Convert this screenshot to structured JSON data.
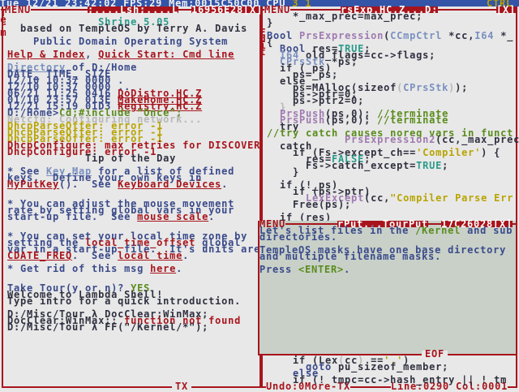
{
  "topbar": {
    "clock": "Tue 12/21 23:42:02",
    "fps": "FPS:29",
    "mem": "Mem:0015C50C00",
    "cpu": "CPU",
    "cpu_vals": "3 1",
    "ctrl": "CTRL"
  },
  "terminal": {
    "menu": "MENU",
    "title": ";....Lsh;....L",
    "id": "16956E28",
    "close": "[X]",
    "side_label": "Term",
    "footer": "TX",
    "lines": [
      [],
      [
        {
          "t": "              Shrine 5.05",
          "c": "c"
        }
      ],
      [
        {
          "t": "  based on TempleOS by Terry A. Davis",
          "c": "k"
        }
      ],
      [],
      [
        {
          "t": "    Public Domain Operating System",
          "c": "b"
        }
      ],
      [],
      [
        {
          "t": "Help & Index",
          "c": "r",
          "u": 1
        },
        {
          "t": ", ",
          "c": "b"
        },
        {
          "t": "Quick Start: Cmd line",
          "c": "r",
          "u": 1
        }
      ],
      [],
      [
        {
          "t": "Directory",
          "c": "l",
          "u": 1
        },
        {
          "t": " of D:/Home",
          "c": "b"
        }
      ],
      [
        {
          "t": "DATE_ TIME_ SIZE",
          "c": "b"
        }
      ],
      [
        {
          "t": "12/10 10:37 0000 .",
          "c": "b"
        }
      ],
      [
        {
          "t": "12/10 10:37 0000 ..",
          "c": "b"
        }
      ],
      [
        {
          "t": "06/21 11:25 0416 ",
          "c": "b"
        },
        {
          "t": "DoDistro.HC.Z",
          "c": "r",
          "u": 1
        }
      ],
      [
        {
          "t": "01/10 23:57 013E ",
          "c": "b"
        },
        {
          "t": "MakeHome.HC.Z",
          "c": "r",
          "u": 1
        }
      ],
      [
        {
          "t": "12/21 15:19 01D3 ",
          "c": "b"
        },
        {
          "t": "Registry.HC.Z",
          "c": "r",
          "u": 1
        }
      ],
      [
        {
          "t": "D:/Home>",
          "c": "b"
        },
        {
          "t": "Cd;#include \"Once\";",
          "c": "g"
        }
      ],
      [
        {
          "t": "Netcfg: Configuring network...",
          "c": "x"
        }
      ],
      [
        {
          "t": "DhcpParseOffer: error -1",
          "c": "y"
        }
      ],
      [
        {
          "t": "DhcpParseOffer: error -1",
          "c": "y"
        }
      ],
      [
        {
          "t": "DhcpParseOffer: error -1",
          "c": "y"
        }
      ],
      [
        {
          "t": "DhcpConfigure: max retries for DISCOVER",
          "c": "r"
        }
      ],
      [
        {
          "t": "DhcpConfigure: error -1",
          "c": "r"
        }
      ],
      [
        {
          "t": "            Tip of the Day",
          "c": "k"
        }
      ],
      [],
      [
        {
          "t": "* See ",
          "c": "b"
        },
        {
          "t": "Key Map",
          "c": "l",
          "u": 1
        },
        {
          "t": " for a list of defined",
          "c": "b"
        }
      ],
      [
        {
          "t": "keys.  Define your own keys in",
          "c": "b"
        }
      ],
      [
        {
          "t": "MyPutKey",
          "c": "r",
          "u": 1
        },
        {
          "t": "().  See ",
          "c": "b"
        },
        {
          "t": "Keyboard Devices",
          "c": "r",
          "u": 1
        },
        {
          "t": ".",
          "c": "b"
        }
      ],
      [],
      [],
      [
        {
          "t": "* You can adjust the mouse movement",
          "c": "b"
        }
      ],
      [
        {
          "t": "rate by setting global vars in your",
          "c": "b"
        }
      ],
      [
        {
          "t": "start-up file.  See ",
          "c": "b"
        },
        {
          "t": "mouse scale",
          "c": "r",
          "u": 1
        },
        {
          "t": ".",
          "c": "b"
        }
      ],
      [],
      [],
      [
        {
          "t": "* You can set your local time zone by",
          "c": "b"
        }
      ],
      [
        {
          "t": "setting the ",
          "c": "b"
        },
        {
          "t": "local_time_offset",
          "c": "r"
        },
        {
          "t": " global",
          "c": "b"
        }
      ],
      [
        {
          "t": "var in a start-up file.  It's units are",
          "c": "b"
        }
      ],
      [
        {
          "t": "CDATE_FREQ",
          "c": "r",
          "u": 1
        },
        {
          "t": ".  See ",
          "c": "b"
        },
        {
          "t": "local time",
          "c": "r",
          "u": 1
        },
        {
          "t": ".",
          "c": "b"
        }
      ],
      [],
      [
        {
          "t": "* Get rid of this msg ",
          "c": "b"
        },
        {
          "t": "here",
          "c": "r",
          "u": 1
        },
        {
          "t": ".",
          "c": "b"
        }
      ],
      [],
      [],
      [
        {
          "t": "Take Tour(y or n)? ",
          "c": "b"
        },
        {
          "t": "YES",
          "c": "g"
        }
      ],
      [
        {
          "t": "Welcome to Lambda Shell!",
          "c": "k"
        }
      ],
      [
        {
          "t": "Type intro for a quick introduction.",
          "c": "k"
        }
      ],
      [],
      [
        {
          "t": "D:/Misc/Tour λ DocClear;WinMax;",
          "c": "k"
        }
      ],
      [
        {
          "t": "DocClear;WinMax;: ",
          "c": "k"
        },
        {
          "t": "function not found",
          "c": "r"
        }
      ],
      [
        {
          "t": "D:/Misc/Tour λ FF(\"/Kernel/*\");",
          "c": "k"
        }
      ]
    ]
  },
  "editor": {
    "menu": "MENU",
    "title": "rsExp.HC.Z...D:",
    "close": "[X]",
    "side_label": "Edit",
    "status_left": "Undo:0More-TX",
    "status_right": "Line:0290 Col:0001",
    "lines": [
      [
        {
          "t": "    *_max_prec=max_prec;",
          "c": "k"
        }
      ],
      [
        {
          "t": "}",
          "c": "k"
        }
      ],
      [],
      [
        {
          "t": "Bool",
          "c": "b"
        },
        {
          "t": " PrsExpression",
          "c": "p"
        },
        {
          "t": "(",
          "c": "k"
        },
        {
          "t": "CCmpCtrl",
          "c": "l"
        },
        {
          "t": " *cc,",
          "c": "k"
        },
        {
          "t": "I64",
          "c": "l"
        },
        {
          "t": " *_",
          "c": "k"
        }
      ],
      [
        {
          "t": "{",
          "c": "k"
        }
      ],
      [
        {
          "t": "  Bool",
          "c": "b"
        },
        {
          "t": " res=",
          "c": "k"
        },
        {
          "t": "TRUE",
          "c": "c"
        },
        {
          "t": ";",
          "c": "k"
        }
      ],
      [
        {
          "t": "  I64",
          "c": "l"
        },
        {
          "t": " old_flags=cc->flags;",
          "c": "k"
        }
      ],
      [
        {
          "t": "  CPrsStk",
          "c": "l"
        },
        {
          "t": " *ps;",
          "c": "k"
        }
      ],
      [
        {
          "t": "  if (_ps)",
          "c": "k"
        }
      ],
      [
        {
          "t": "    ps=_ps;",
          "c": "k"
        }
      ],
      [
        {
          "t": "  else",
          "c": "k"
        }
      ],
      [
        {
          "t": "    ps=MAlloc(sizeof",
          "c": "k"
        },
        {
          "t": "(",
          "c": "x"
        },
        {
          "t": "CPrsStk",
          "c": "l"
        },
        {
          "t": ")",
          "c": "x"
        },
        {
          "t": ");",
          "c": "k"
        }
      ],
      [
        {
          "t": "    ps->ptr=0;",
          "c": "k"
        }
      ],
      [
        {
          "t": "    ps->ptr2=0;",
          "c": "k"
        }
      ],
      [
        {
          "t": "  }",
          "c": "x"
        }
      ],
      [
        {
          "t": "  PrsPush",
          "c": "p"
        },
        {
          "t": "(ps,0); ",
          "c": "k"
        },
        {
          "t": "//terminate",
          "c": "g"
        }
      ],
      [
        {
          "t": "  PrsPush",
          "c": "p"
        },
        {
          "t": "(ps,0); ",
          "c": "k"
        },
        {
          "t": "//terminate",
          "c": "g"
        }
      ],
      [
        {
          "t": "  try",
          "c": "k"
        }
      ],
      [
        {
          "t": "//try catch causes noreg vars in funct",
          "c": "g"
        }
      ],
      [
        {
          "t": "            PrsExpression2",
          "c": "p"
        },
        {
          "t": "(cc,_max_prec,",
          "c": "k"
        }
      ],
      [
        {
          "t": "  catch",
          "c": "k"
        }
      ],
      [
        {
          "t": "    if (Fs->except_ch==",
          "c": "k"
        },
        {
          "t": "'Compiler'",
          "c": "y"
        },
        {
          "t": ") {",
          "c": "k"
        }
      ],
      [
        {
          "t": "      res=",
          "c": "k"
        },
        {
          "t": "FALSE",
          "c": "c"
        },
        {
          "t": ";",
          "c": "k"
        }
      ],
      [
        {
          "t": "      Fs->catch_except=",
          "c": "k"
        },
        {
          "t": "TRUE",
          "c": "c"
        },
        {
          "t": ";",
          "c": "k"
        }
      ],
      [
        {
          "t": "    }",
          "c": "k"
        }
      ],
      [],
      [
        {
          "t": "  if (!_ps)",
          "c": "k"
        }
      ],
      [
        {
          "t": "    if (ps->ptr)",
          "c": "k"
        }
      ],
      [
        {
          "t": "      LexExcept",
          "c": "p"
        },
        {
          "t": "(cc,",
          "c": "k"
        },
        {
          "t": "\"Compiler Parse Err",
          "c": "y"
        }
      ],
      [
        {
          "t": "    Free(ps);",
          "c": "k"
        }
      ],
      [],
      [
        {
          "t": "  if (res)",
          "c": "k"
        }
      ]
    ],
    "bottom_lines": [
      [
        {
          "t": "    if (Lex",
          "c": "k"
        },
        {
          "t": "(",
          "c": "x"
        },
        {
          "t": "cc",
          "c": "k"
        },
        {
          "t": ")",
          "c": "x"
        },
        {
          "t": " ==",
          "c": "k"
        },
        {
          "t": "'.'",
          "c": "y"
        },
        {
          "t": ")",
          "c": "k"
        }
      ],
      [
        {
          "t": "      goto",
          "c": "b"
        },
        {
          "t": " pu_sizeof_member;",
          "c": "k"
        }
      ],
      [
        {
          "t": "    else",
          "c": "b"
        }
      ],
      [
        {
          "t": "    if (! tmpc=cc->hash_entry || ! tm",
          "c": "k"
        }
      ]
    ]
  },
  "tour": {
    "menu": "MENU",
    "title": "rPut...TourPut",
    "id": "17C26028",
    "close": "[X]",
    "footer": "EOF",
    "lines": [
      [
        {
          "t": "Let's list files in the ",
          "c": "b"
        },
        {
          "t": "/Kernel",
          "c": "g"
        },
        {
          "t": " and sub",
          "c": "b"
        }
      ],
      [
        {
          "t": "directories.",
          "c": "b"
        }
      ],
      [],
      [
        {
          "t": "TempleOS masks have one base directory",
          "c": "b"
        }
      ],
      [
        {
          "t": "and multiple filename masks.",
          "c": "b"
        }
      ],
      [],
      [
        {
          "t": "Press ",
          "c": "b"
        },
        {
          "t": "<ENTER>",
          "c": "g"
        },
        {
          "t": ".",
          "c": "b"
        }
      ]
    ]
  }
}
